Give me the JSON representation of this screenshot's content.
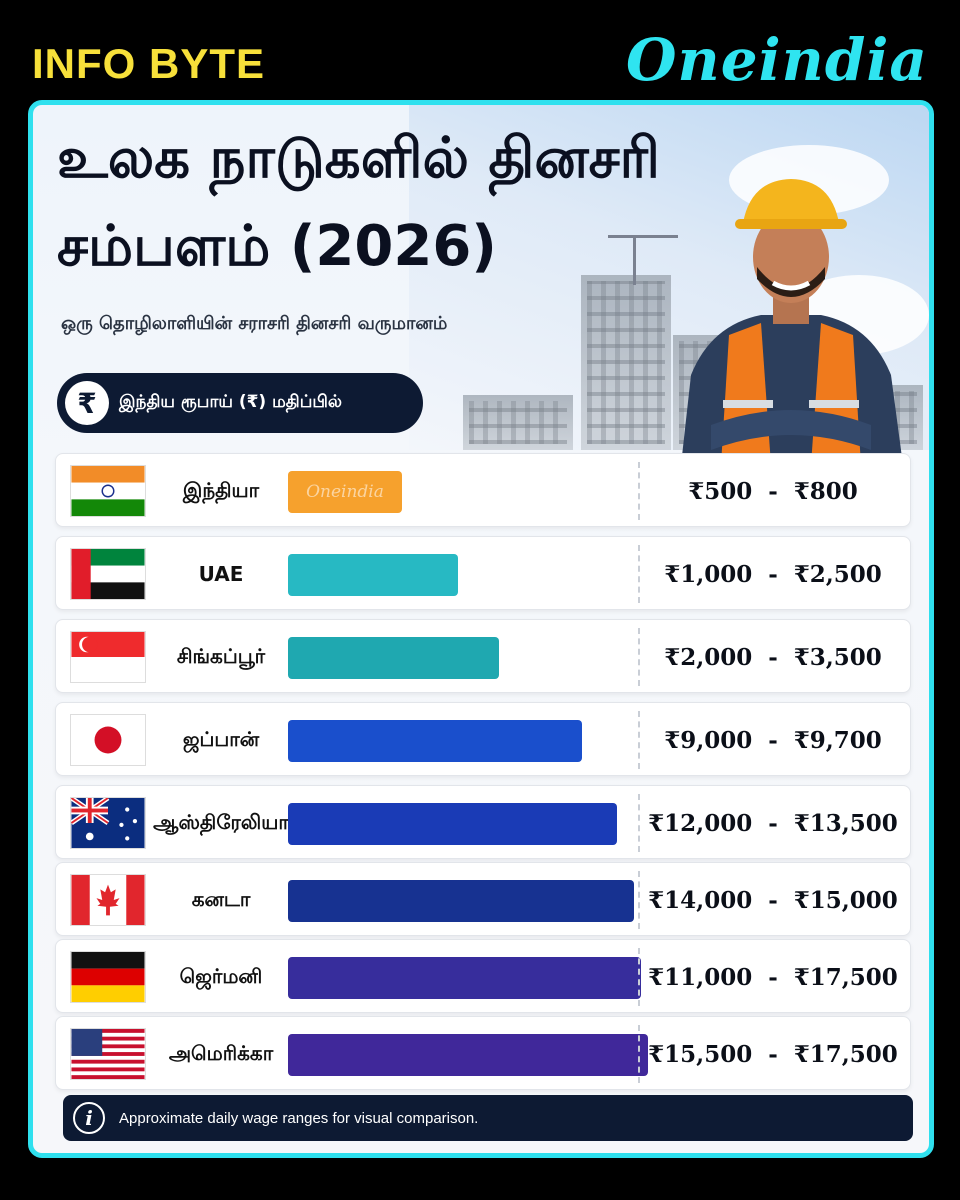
{
  "header": {
    "label": "INFO BYTE",
    "brand": "Oneindia"
  },
  "card": {
    "title_line1": "உலக நாடுகளில் தினசரி",
    "title_line2": "சம்பளம் (2026)",
    "subtitle": "ஒரு தொழிலாளியின் சராசரி தினசரி வருமானம்",
    "currency_icon": "₹",
    "currency_note": "இந்திய ரூபாய் (₹) மதிப்பில்",
    "bar_watermark": "Oneindia"
  },
  "footer": {
    "info_icon": "i",
    "text": "Approximate daily wage ranges for visual comparison."
  },
  "chart_data": {
    "type": "bar",
    "title": "உலக நாடுகளில் தினசரி சம்பளம் (2026)",
    "subtitle": "ஒரு தொழிலாளியின் சராசரி தினசரி வருமானம்",
    "unit": "₹",
    "categories": [
      "இந்தியா",
      "UAE",
      "சிங்கப்பூர்",
      "ஜப்பான்",
      "ஆஸ்திரேலியா",
      "கனடா",
      "ஜெர்மனி",
      "அமெரிக்கா"
    ],
    "flags": [
      "india-flag-icon",
      "uae-flag-icon",
      "singapore-flag-icon",
      "japan-flag-icon",
      "australia-flag-icon",
      "canada-flag-icon",
      "germany-flag-icon",
      "usa-flag-icon"
    ],
    "ranges": [
      "₹500  -  ₹800",
      "₹1,000  -  ₹2,500",
      "₹2,000  -  ₹3,500",
      "₹9,000  -  ₹9,700",
      "₹12,000  -  ₹13,500",
      "₹14,000  -  ₹15,000",
      "₹11,000  -  ₹17,500",
      "₹15,500  -  ₹17,500"
    ],
    "min": [
      500,
      1000,
      2000,
      9000,
      12000,
      14000,
      11000,
      15500
    ],
    "max": [
      800,
      2500,
      3500,
      9700,
      13500,
      15000,
      17500,
      17500
    ],
    "bar_fraction": [
      0.33,
      0.49,
      0.61,
      0.85,
      0.95,
      1.0,
      1.02,
      1.04
    ],
    "colors": [
      "#f6a12d",
      "#27b9c3",
      "#1fa8b0",
      "#1a4fcc",
      "#1a3bb6",
      "#173291",
      "#372d9c",
      "#40289a"
    ]
  }
}
